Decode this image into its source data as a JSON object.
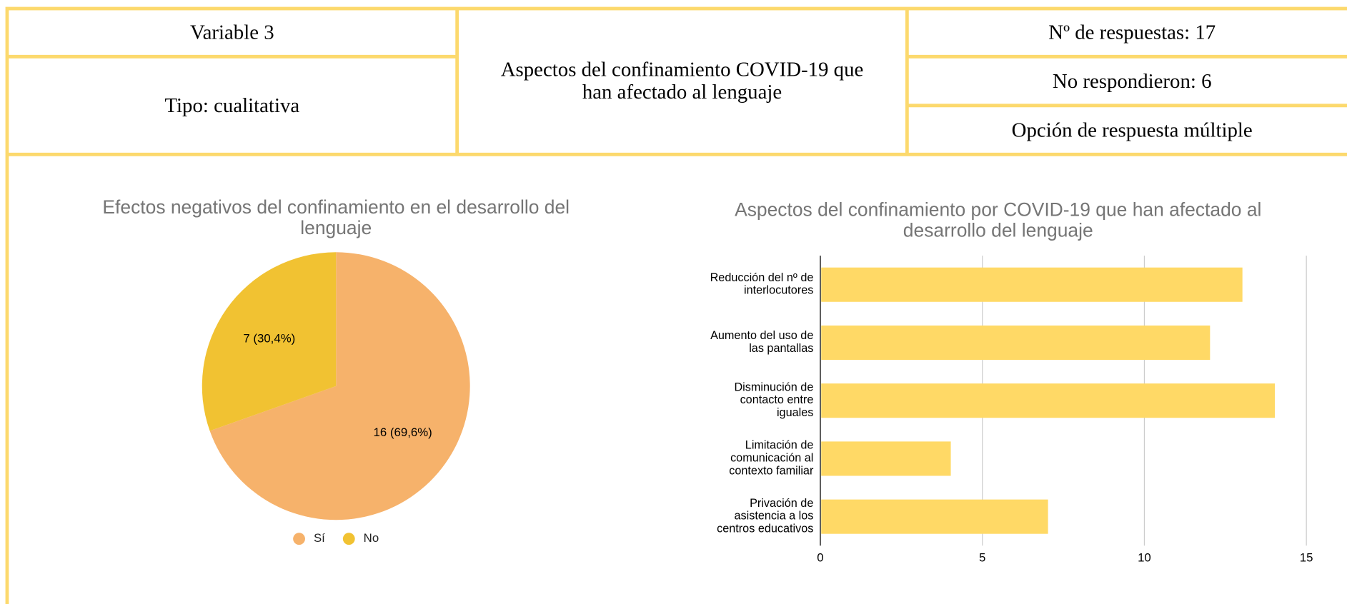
{
  "header": {
    "variable": "Variable 3",
    "tipo": "Tipo: cualitativa",
    "title": "Aspectos del confinamiento COVID-19 que\nhan afectado al lenguaje",
    "respuestas": "Nº de respuestas: 17",
    "no_respondieron": "No respondieron: 6",
    "opcion": "Opción de respuesta múltiple"
  },
  "chart_data": [
    {
      "type": "pie",
      "title": "Efectos negativos del confinamiento en el desarrollo del\nlenguaje",
      "categories": [
        "Sí",
        "No"
      ],
      "values": [
        16,
        7
      ],
      "value_labels": [
        "16 (69,6%)",
        "7 (30,4%)"
      ],
      "colors": [
        "#f6b26b",
        "#f1c232"
      ],
      "legend": "bottom"
    },
    {
      "type": "hbar",
      "title": "Aspectos del confinamiento por COVID-19 que han afectado al\ndesarrollo del lenguaje",
      "categories": [
        "Reducción del nº de\ninterlocutores",
        "Aumento del uso de\nlas pantallas",
        "Disminución de\ncontacto entre\niguales",
        "Limitación de\ncomunicación al\ncontexto familiar",
        "Privación de\nasistencia a los\ncentros educativos"
      ],
      "values": [
        13,
        12,
        14,
        4,
        7
      ],
      "color": "#ffd966",
      "xlim": [
        0,
        15
      ],
      "xticks": [
        0,
        5,
        10,
        15
      ],
      "grid": true
    }
  ]
}
